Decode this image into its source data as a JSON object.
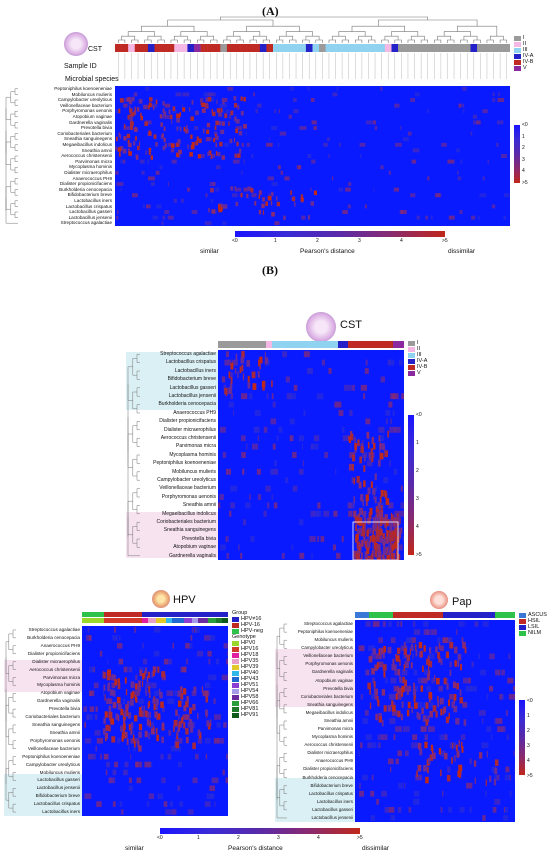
{
  "panel_a": {
    "label": "(A)",
    "row_labels": {
      "cst": "CST",
      "sample_id": "Sample ID",
      "species": "Microbial species"
    },
    "species": [
      "Peptoniphilus koenoeneniae",
      "Mobiluncus mulieris",
      "Campylobacter ureolyticus",
      "Veillonellaceae bacterium",
      "Porphyromonas uenonis",
      "Atopobium vaginae",
      "Gardnerella vaginalis",
      "Prevotella bivia",
      "Coriobacteriales bacterium",
      "Sneathia sanguinegens",
      "Megaeibacillus indolicus",
      "Sneathia amnii",
      "Aerococcus christensenii",
      "Parvimonas micra",
      "Mycoplasma hominis",
      "Dialister micraerophilus",
      "Anaerococcus PH9",
      "Dialister propionicifaciens",
      "Burkholderia cenocepacia",
      "Bifidobacterium breve",
      "Lactobacillus iners",
      "Lactobacillus crispatus",
      "Lactobacillus gasseri",
      "Lactobacillus jensenii",
      "Streptococcus agalactiae"
    ],
    "cst_legend": [
      {
        "label": "I",
        "color": "#9a9a9a"
      },
      {
        "label": "II",
        "color": "#f5b8e4"
      },
      {
        "label": "III",
        "color": "#8fd3f0"
      },
      {
        "label": "IV-A",
        "color": "#2421c9"
      },
      {
        "label": "IV-B",
        "color": "#c02a25"
      },
      {
        "label": "V",
        "color": "#8a2a9e"
      }
    ],
    "colorbar_ticks": [
      "<0",
      "1",
      "2",
      "3",
      "4",
      ">5"
    ],
    "xbar_ticks": [
      "<0",
      "1",
      "2",
      "3",
      "4",
      ">5"
    ],
    "xbar_title": "Pearson's distance",
    "xbar_left": "similar",
    "xbar_right": "dissimilar"
  },
  "panel_b": {
    "label": "(B)",
    "cst_title": "CST",
    "species": [
      "Streptococcus agalactiae",
      "Lactobacillus crispatus",
      "Lactobacillus iners",
      "Bifidobacterium breve",
      "Lactobacillus gasseri",
      "Lactobacillus jensenii",
      "Burkholderia cenocepacia",
      "Anaerococcus PH9",
      "Dialister propionicifaciens",
      "Dialister micraerophilus",
      "Aerococcus christensenii",
      "Parvimonas micra",
      "Mycoplasma hominis",
      "Peptoniphilus koenoeneniae",
      "Mobiluncus mulieris",
      "Campylobacter ureolyticus",
      "Veillonellaceae bacterium",
      "Porphyromonas uenonis",
      "Sneathia amnii",
      "Megaeibacillus indolicus",
      "Coriobacteriales bacterium",
      "Sneathia sanguinegens",
      "Prevotella bivia",
      "Atopobium vaginae",
      "Gardnerella vaginalis"
    ],
    "cst_legend": [
      {
        "label": "I",
        "color": "#9a9a9a"
      },
      {
        "label": "II",
        "color": "#f5b8e4"
      },
      {
        "label": "III",
        "color": "#8fd3f0"
      },
      {
        "label": "IV-A",
        "color": "#2421c9"
      },
      {
        "label": "IV-B",
        "color": "#c02a25"
      },
      {
        "label": "V",
        "color": "#8a2a9e"
      }
    ],
    "colorbar_ticks": [
      "<0",
      "1",
      "2",
      "3",
      "4",
      ">5"
    ]
  },
  "hpv": {
    "title": "HPV",
    "group_title": "Group",
    "groups": [
      {
        "label": "HPV≠16",
        "color": "#2421c9"
      },
      {
        "label": "HPV-16",
        "color": "#c02a25"
      },
      {
        "label": "HPV-neg",
        "color": "#2ec24a"
      }
    ],
    "genotype_title": "Genotype",
    "genotypes": [
      {
        "label": "HPV0",
        "color": "#9bd62a"
      },
      {
        "label": "HPV16",
        "color": "#d23a2a"
      },
      {
        "label": "HPV18",
        "color": "#e11fa0"
      },
      {
        "label": "HPV35",
        "color": "#e7a1c9"
      },
      {
        "label": "HPV39",
        "color": "#e3c82a"
      },
      {
        "label": "HPV40",
        "color": "#2fb8e8"
      },
      {
        "label": "HPV43",
        "color": "#1f69d2"
      },
      {
        "label": "HPV51",
        "color": "#8a3fd2"
      },
      {
        "label": "HPV54",
        "color": "#a59ae8"
      },
      {
        "label": "HPV58",
        "color": "#6a2aa0"
      },
      {
        "label": "HPV66",
        "color": "#2a9e3a"
      },
      {
        "label": "HPV81",
        "color": "#1e7a2a"
      },
      {
        "label": "HPV91",
        "color": "#0e5a1a"
      }
    ],
    "species": [
      "Streptococcus agalactiae",
      "Burkholderia cenocepacia",
      "Anaerococcus PH9",
      "Dialister propionicifaciens",
      "Dialister micraerophilus",
      "Aerococcus christensenii",
      "Parvimonas micra",
      "Mycoplasma hominis",
      "Atopobium vaginae",
      "Gardnerella vaginalis",
      "Prevotella bivia",
      "Coriobacteriales bacterium",
      "Sneathia sanguinegens",
      "Sneathia amnii",
      "Porphyromonas uenonis",
      "Veillonellaceae bacterium",
      "Peptoniphilus koenoeneniae",
      "Campylobacter ureolyticus",
      "Mobiluncus mulieris",
      "Lactobacillus gasseri",
      "Lactobacillus jensenii",
      "Bifidobacterium breve",
      "Lactobacillus crispatus",
      "Lactobacillus iners"
    ]
  },
  "pap": {
    "title": "Pap",
    "legend": [
      {
        "label": "ASCUS",
        "color": "#3a78d8"
      },
      {
        "label": "HSIL",
        "color": "#c02a25"
      },
      {
        "label": "LSIL",
        "color": "#2421c9"
      },
      {
        "label": "NILM",
        "color": "#2ec24a"
      }
    ],
    "species": [
      "Streptococcus agalactiae",
      "Peptoniphilus koenoeneniae",
      "Mobiluncus mulieris",
      "Campylobacter ureolyticus",
      "Veillonellaceae bacterium",
      "Porphyromonas uenonis",
      "Gardnerella vaginalis",
      "Atopobium vaginae",
      "Prevotella bivia",
      "Coriobacteriales bacterium",
      "Sneathia sanguinegens",
      "Megaeibacillus indolicus",
      "Sneathia amnii",
      "Parvimonas micra",
      "Mycoplasma hominis",
      "Aerococcus christensenii",
      "Dialister micraerophilus",
      "Anaerococcus PH9",
      "Dialister propionicifaciens",
      "Burkholderia cenocepacia",
      "Bifidobacterium breve",
      "Lactobacillus crispatus",
      "Lactobacillus iners",
      "Lactobacillus gasseri",
      "Lactobacillus jensenii"
    ],
    "colorbar_ticks": [
      "<0",
      "1",
      "2",
      "3",
      "4",
      ">5"
    ]
  },
  "bottom_bar": {
    "ticks": [
      "<0",
      "1",
      "2",
      "3",
      "4",
      ">5"
    ],
    "title": "Pearson's distance",
    "left": "similar",
    "right": "dissimilar"
  }
}
